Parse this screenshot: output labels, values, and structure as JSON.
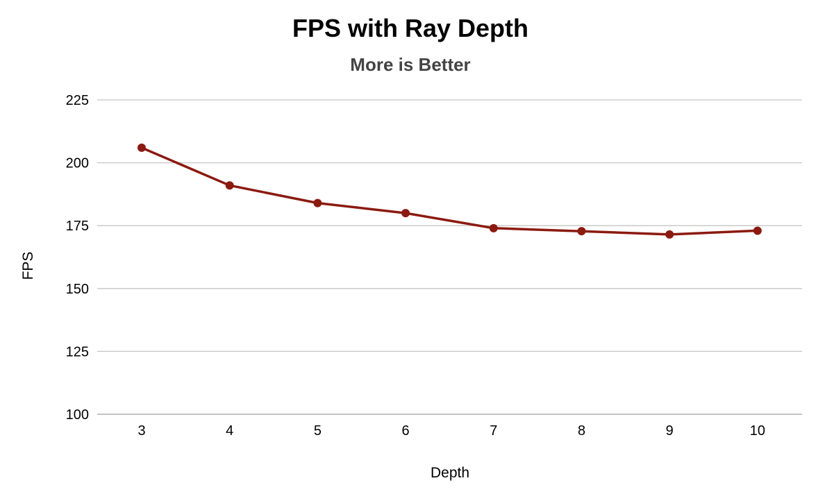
{
  "chart_data": {
    "type": "line",
    "title": "FPS with Ray Depth",
    "subtitle": "More is Better",
    "xlabel": "Depth",
    "ylabel": "FPS",
    "categories": [
      "3",
      "4",
      "5",
      "6",
      "7",
      "8",
      "9",
      "10"
    ],
    "series": [
      {
        "values": [
          206,
          191,
          184,
          180,
          174,
          172.8,
          171.5,
          173
        ]
      }
    ],
    "ylim": [
      100,
      225
    ],
    "yticks": [
      "100",
      "125",
      "150",
      "175",
      "200",
      "225"
    ],
    "grid": true,
    "legend": "none",
    "colors": {
      "series": "#8b1a10",
      "grid": "#c6c6c6"
    }
  }
}
